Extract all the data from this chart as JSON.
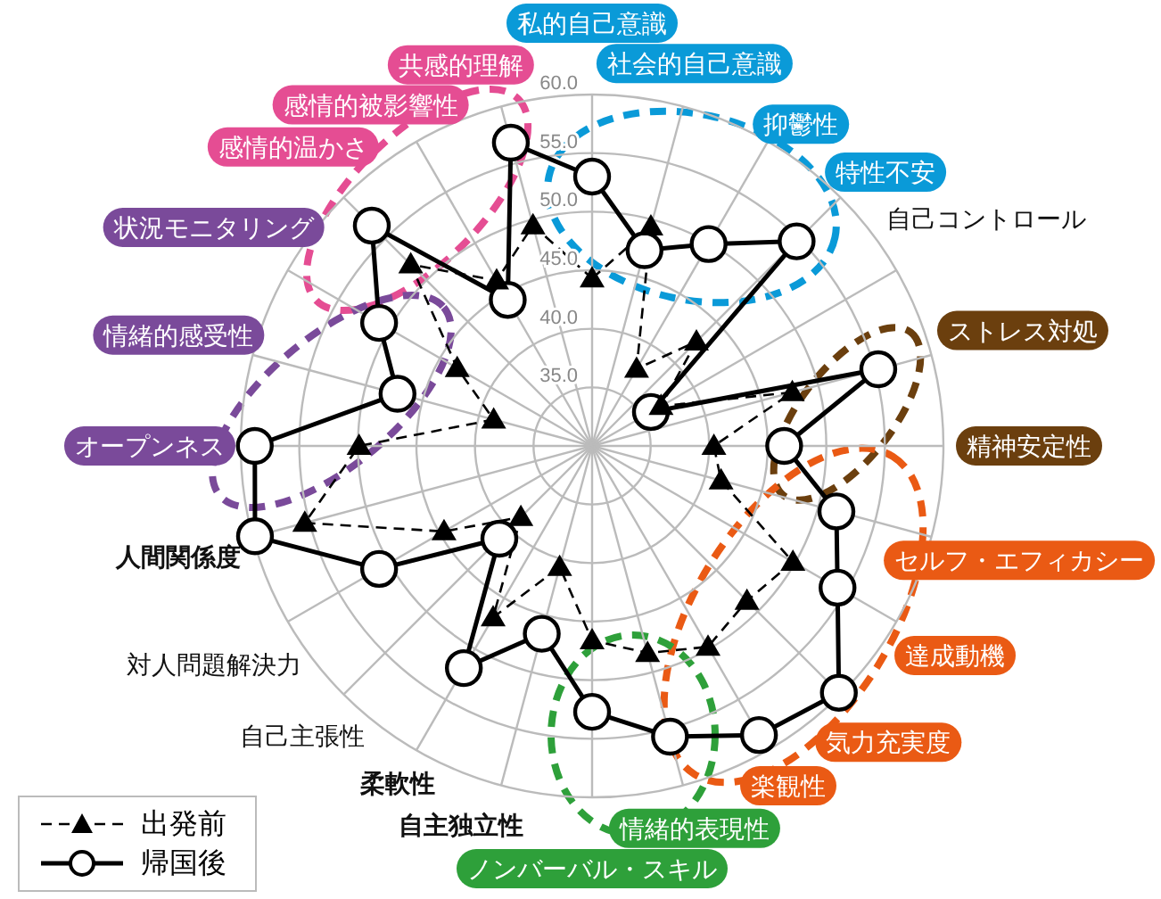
{
  "chart_data": {
    "type": "radar",
    "categories": [
      "私的自己意識",
      "社会的自己意識",
      "抑鬱性",
      "特性不安",
      "自己コントロール",
      "ストレス対処",
      "精神安定性",
      "セルフ・エフィカシー",
      "達成動機",
      "気力充実度",
      "楽観性",
      "情緒的表現性",
      "ノンバーバル・スキル",
      "自主独立性",
      "柔軟性",
      "自己主張性",
      "対人問題解決力",
      "人間関係度",
      "オープンネス",
      "情緒的感受性",
      "状況モニタリング",
      "感情的温かさ",
      "感情的被影響性",
      "共感的理解"
    ],
    "series": [
      {
        "name": "出発前",
        "color": "#000000",
        "line_style": "dashed",
        "marker": "triangle",
        "values": [
          44.3,
          49.4,
          37.6,
          42.6,
          36.8,
          47.7,
          40.4,
          41.4,
          49.8,
          48.7,
          49.8,
          48.3,
          46.6,
          40.7,
          46.9,
          38.6,
          44.6,
          55.4,
          49.9,
          38.7,
          43.3,
          51.9,
          46.3,
          49.5
        ]
      },
      {
        "name": "帰国後",
        "color": "#000000",
        "line_style": "solid",
        "marker": "circle",
        "values": [
          53.0,
          47.3,
          49.9,
          54.7,
          35.8,
          55.3,
          46.4,
          51.6,
          54.2,
          59.8,
          58.5,
          55.7,
          52.7,
          46.6,
          51.9,
          41.2,
          51.0,
          59.8,
          58.8,
          47.2,
          51.0,
          56.6,
          44.4,
          56.8
        ]
      }
    ],
    "ylim": [
      30,
      60
    ],
    "yticks": [
      {
        "value": 35,
        "label": "35.0"
      },
      {
        "value": 40,
        "label": "40.0"
      },
      {
        "value": 45,
        "label": "45.0"
      },
      {
        "value": 50,
        "label": "50.0"
      },
      {
        "value": 55,
        "label": "55.0"
      },
      {
        "value": 60,
        "label": "60.0"
      }
    ],
    "grid": true,
    "legend": "bottom left"
  }
}
